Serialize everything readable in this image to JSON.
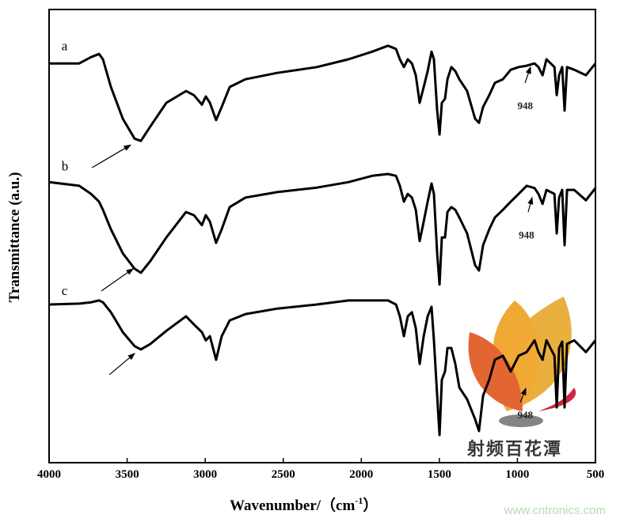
{
  "chart_data": {
    "type": "line",
    "title": "",
    "xlabel": "Wavenumber/（cm",
    "xlabel_sup": "-1",
    "xlabel_end": "）",
    "ylabel": "Transmittance (a.u.)",
    "xlim": [
      4000,
      500
    ],
    "ylim": [
      0,
      100
    ],
    "x_reversed": true,
    "grid": false,
    "legend": "none",
    "xticks": [
      4000,
      3500,
      3000,
      2500,
      2000,
      1500,
      1000,
      500
    ],
    "x": [
      4000,
      3807,
      3731,
      3680,
      3655,
      3604,
      3528,
      3452,
      3412,
      3351,
      3249,
      3123,
      3072,
      3021,
      2996,
      2970,
      2930,
      2894,
      2843,
      2742,
      2539,
      2285,
      2083,
      1930,
      1829,
      1778,
      1753,
      1727,
      1702,
      1676,
      1651,
      1626,
      1600,
      1575,
      1550,
      1535,
      1514,
      1499,
      1484,
      1464,
      1448,
      1423,
      1398,
      1372,
      1322,
      1271,
      1246,
      1220,
      1180,
      1144,
      1093,
      1043,
      992,
      941,
      890,
      865,
      839,
      814,
      763,
      748,
      733,
      713,
      698,
      682,
      636,
      561,
      500
    ],
    "series": [
      {
        "name": "a",
        "color": "#000000",
        "values": [
          88.1,
          88.1,
          89.5,
          90.2,
          89.0,
          82.9,
          75.9,
          71.5,
          71.0,
          74.2,
          79.4,
          82.0,
          81.1,
          79.0,
          80.8,
          79.4,
          75.6,
          78.5,
          82.9,
          84.6,
          86.0,
          87.3,
          89.0,
          90.7,
          92.0,
          91.3,
          89.0,
          87.3,
          89.0,
          88.1,
          85.5,
          79.4,
          82.9,
          86.4,
          90.7,
          89.0,
          77.7,
          72.4,
          79.4,
          80.3,
          84.6,
          87.3,
          86.4,
          84.6,
          82.0,
          75.9,
          75.0,
          78.5,
          81.1,
          83.8,
          84.6,
          86.7,
          87.3,
          87.6,
          88.1,
          87.3,
          85.5,
          89.0,
          87.3,
          81.1,
          85.5,
          87.3,
          77.7,
          87.3,
          86.7,
          85.5,
          88.1
        ]
      },
      {
        "name": "b",
        "color": "#000000",
        "values": [
          61.9,
          61.1,
          59.3,
          57.6,
          55.8,
          51.5,
          46.2,
          42.8,
          41.9,
          44.5,
          49.7,
          55.3,
          54.6,
          52.4,
          54.6,
          53.2,
          48.5,
          51.5,
          56.4,
          58.5,
          59.7,
          60.7,
          61.9,
          63.3,
          63.7,
          63.3,
          61.1,
          57.6,
          59.3,
          58.5,
          55.8,
          48.9,
          53.2,
          57.6,
          61.6,
          59.3,
          46.2,
          39.3,
          49.7,
          49.7,
          55.3,
          56.4,
          55.8,
          54.1,
          50.6,
          43.6,
          42.4,
          48.0,
          51.5,
          54.1,
          55.8,
          57.6,
          59.3,
          61.1,
          60.6,
          59.3,
          57.1,
          60.2,
          59.3,
          50.6,
          58.5,
          60.2,
          48.0,
          60.2,
          60.2,
          57.9,
          60.6
        ]
      },
      {
        "name": "c",
        "color": "#000000",
        "values": [
          34.9,
          35.1,
          35.4,
          35.8,
          35.4,
          33.2,
          28.8,
          25.7,
          25.0,
          26.2,
          29.1,
          32.3,
          30.5,
          28.8,
          27.0,
          27.9,
          22.7,
          27.9,
          31.4,
          32.8,
          34.0,
          34.9,
          35.8,
          35.8,
          35.8,
          34.9,
          32.3,
          27.9,
          32.3,
          33.2,
          29.7,
          21.8,
          27.9,
          32.3,
          34.4,
          27.0,
          14.8,
          6.1,
          18.3,
          20.1,
          25.3,
          25.3,
          21.8,
          16.6,
          14.0,
          9.6,
          7.0,
          14.8,
          18.3,
          22.7,
          23.6,
          20.1,
          23.6,
          24.4,
          27.0,
          24.4,
          22.7,
          27.0,
          23.6,
          12.2,
          25.3,
          26.7,
          12.2,
          26.2,
          27.0,
          24.4,
          27.0
        ]
      }
    ],
    "curve_labels": [
      {
        "text": "a",
        "x": 3920,
        "y": 91
      },
      {
        "text": "b",
        "x": 3920,
        "y": 64.5
      },
      {
        "text": "c",
        "x": 3920,
        "y": 37
      }
    ],
    "annotations": [
      {
        "type": "arrow",
        "from": [
          3725,
          65.1
        ],
        "to": [
          3478,
          70.1
        ]
      },
      {
        "type": "arrow",
        "from": [
          3665,
          37.9
        ],
        "to": [
          3462,
          42.8
        ]
      },
      {
        "type": "arrow",
        "from": [
          3614,
          19.4
        ],
        "to": [
          3452,
          24.1
        ]
      },
      {
        "type": "arrow",
        "from": [
          951,
          83.8
        ],
        "to": [
          916,
          87.3
        ],
        "text": "948",
        "text_at": [
          950,
          78.0
        ]
      },
      {
        "type": "arrow",
        "from": [
          931,
          55.3
        ],
        "to": [
          906,
          58.5
        ],
        "text": "948",
        "text_at": [
          942,
          49.5
        ]
      },
      {
        "type": "arrow",
        "from": [
          981,
          13.3
        ],
        "to": [
          946,
          16.4
        ],
        "text": "948",
        "text_at": [
          950,
          9.8
        ]
      }
    ]
  },
  "logo": {
    "text": "射频百花潭"
  },
  "watermark": "www.cntronics.com"
}
